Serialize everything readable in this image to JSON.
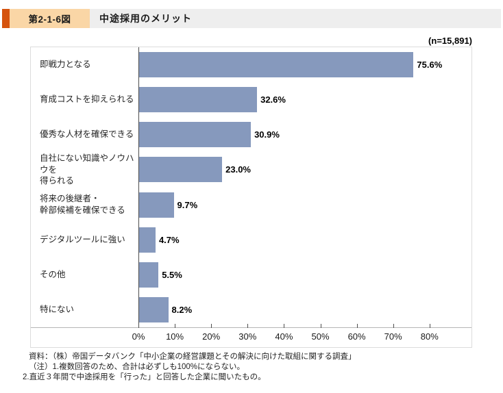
{
  "header": {
    "figure_number": "第2-1-6図",
    "title": "中途採用のメリット",
    "accent_color": "#d5530e",
    "badge_color": "#fad6a6",
    "strip_color": "#eeeeee"
  },
  "chart_data": {
    "type": "bar",
    "orientation": "horizontal",
    "title": "中途採用のメリット",
    "n_label": "(n=15,891)",
    "categories": [
      "即戦力となる",
      "育成コストを抑えられる",
      "優秀な人材を確保できる",
      "自社にない知識やノウハウを\n得られる",
      "将来の後継者・\n幹部候補を確保できる",
      "デジタルツールに強い",
      "その他",
      "特にない"
    ],
    "values": [
      75.6,
      32.6,
      30.9,
      23.0,
      9.7,
      4.7,
      5.5,
      8.2
    ],
    "value_labels": [
      "75.6%",
      "32.6%",
      "30.9%",
      "23.0%",
      "9.7%",
      "4.7%",
      "5.5%",
      "8.2%"
    ],
    "x_ticks": [
      "0%",
      "10%",
      "20%",
      "30%",
      "40%",
      "50%",
      "60%",
      "70%",
      "80%"
    ],
    "xlim": [
      0,
      92
    ],
    "xlabel": "",
    "ylabel": "",
    "grid": false,
    "legend": null,
    "bar_color": "#8699bd",
    "axis_color": "#4d4d4d"
  },
  "footer": {
    "source": "資料：（株）帝国データバンク「中小企業の経営課題とその解決に向けた取組に関する調査」",
    "note1": "（注）1.複数回答のため、合計は必ずしも100%にならない。",
    "note2": "2.直近３年間で中途採用を「行った」と回答した企業に聞いたもの。"
  }
}
